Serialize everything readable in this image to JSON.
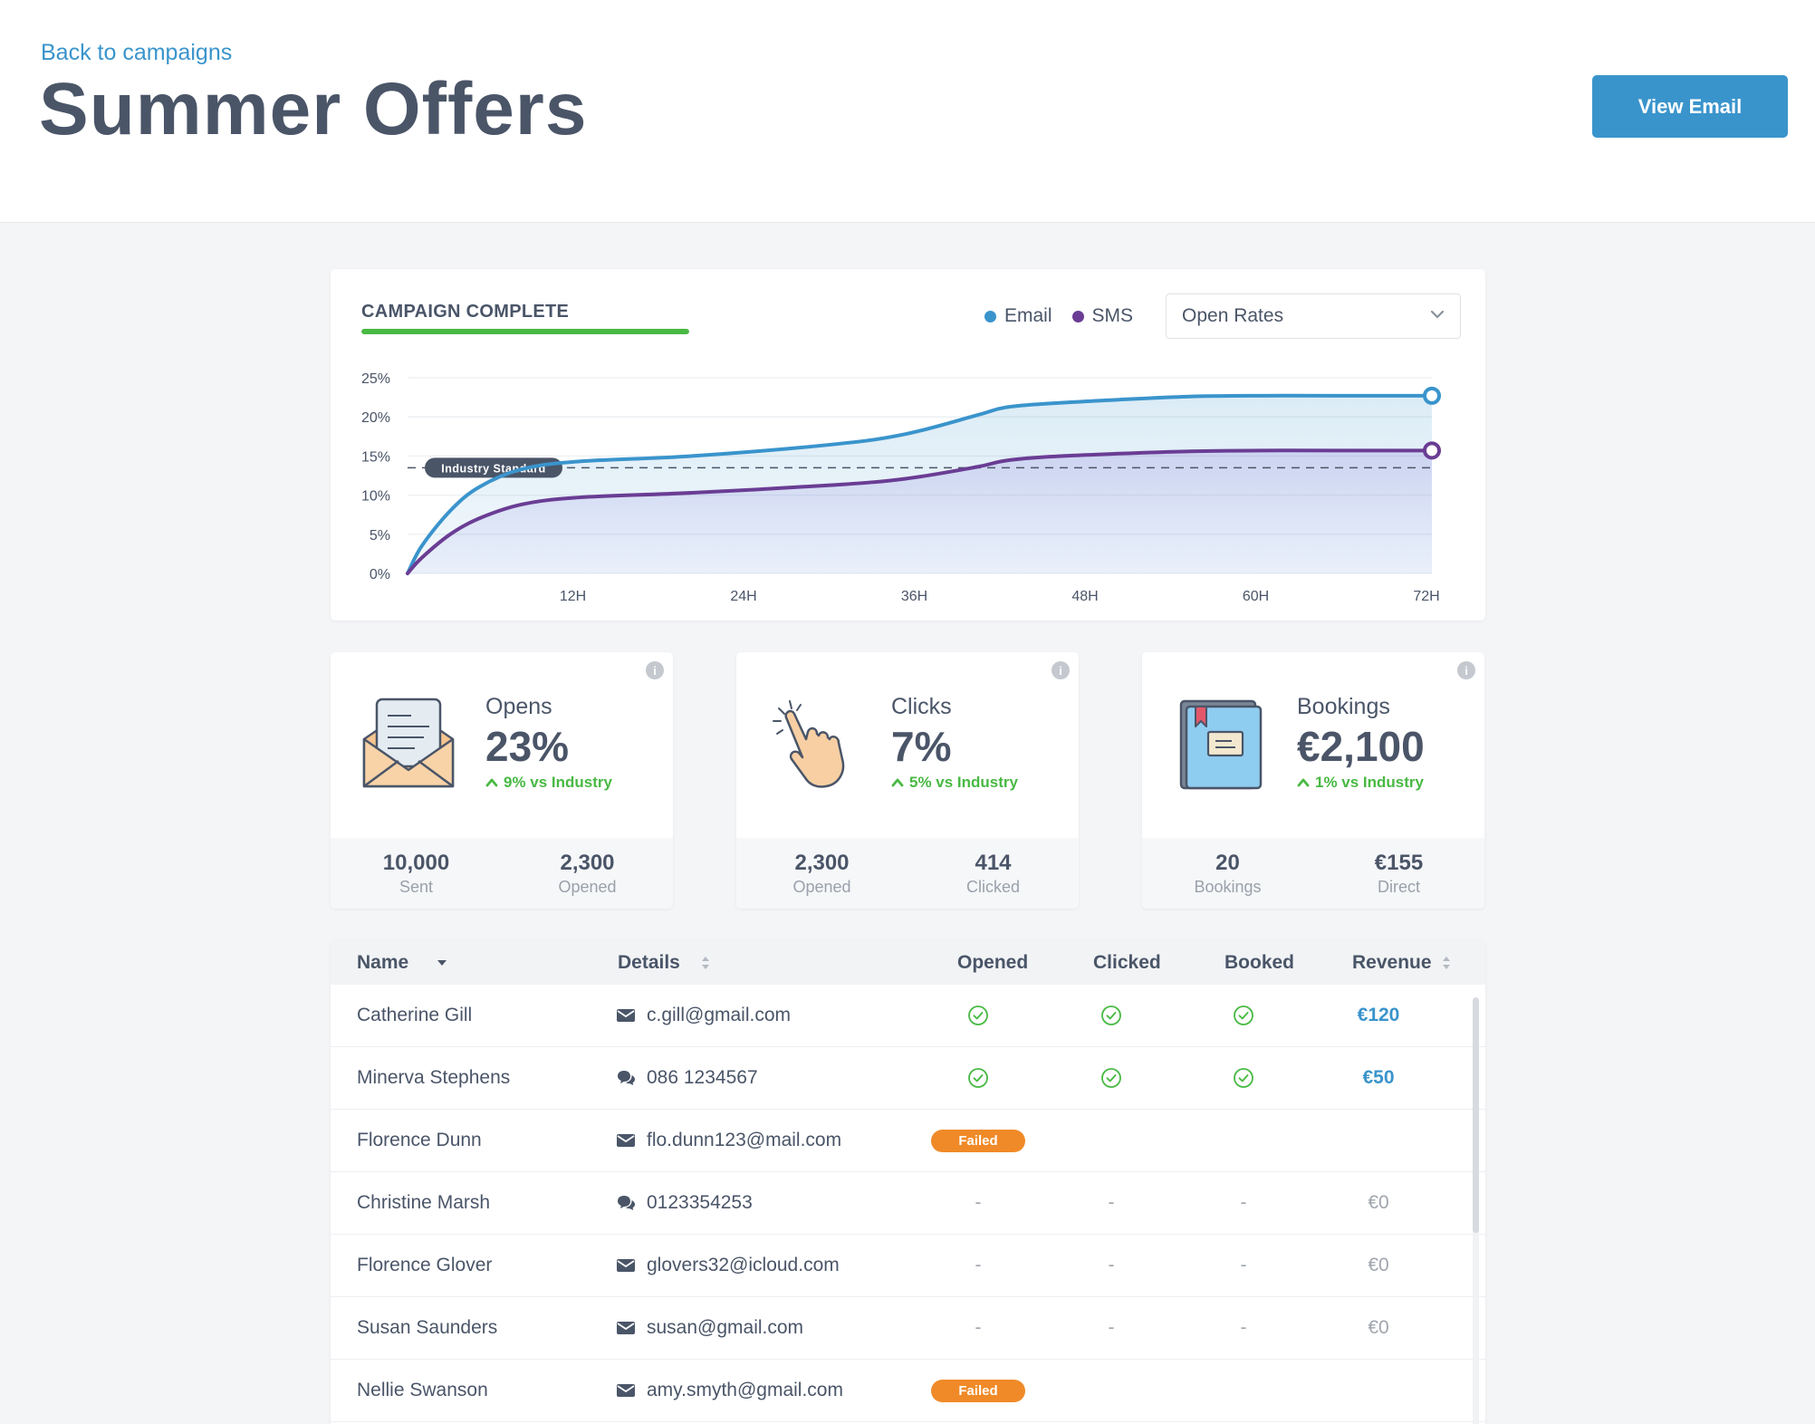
{
  "header": {
    "back_label": "Back to campaigns",
    "title": "Summer Offers",
    "view_email_label": "View Email"
  },
  "campaign": {
    "status_label": "CAMPAIGN COMPLETE",
    "progress": 1.0,
    "legend": [
      {
        "name": "Email",
        "color": "#3a94cc"
      },
      {
        "name": "SMS",
        "color": "#6a3d94"
      }
    ],
    "metric_select": "Open Rates"
  },
  "chart_data": {
    "type": "line",
    "x_ticks": [
      "12H",
      "24H",
      "36H",
      "48H",
      "60H",
      "72H"
    ],
    "y_ticks": [
      "0%",
      "5%",
      "10%",
      "15%",
      "20%",
      "25%"
    ],
    "ylim": [
      0,
      25
    ],
    "xlim": [
      0,
      72
    ],
    "series": [
      {
        "name": "Email",
        "color": "#3a94cc",
        "x": [
          0,
          1,
          3,
          5,
          8,
          12,
          20,
          30,
          35,
          40,
          42,
          45,
          50,
          55,
          60,
          65,
          72
        ],
        "y": [
          0,
          3.5,
          8,
          11,
          13.3,
          14.3,
          15,
          16.5,
          17.8,
          20.2,
          21.2,
          21.7,
          22.2,
          22.6,
          22.7,
          22.7,
          22.7
        ]
      },
      {
        "name": "SMS",
        "color": "#6a3d94",
        "x": [
          0,
          1,
          3,
          5,
          8,
          12,
          20,
          30,
          35,
          40,
          42,
          45,
          50,
          55,
          60,
          65,
          72
        ],
        "y": [
          0,
          2,
          5,
          7,
          8.8,
          9.7,
          10.3,
          11.3,
          12.1,
          13.6,
          14.4,
          14.9,
          15.3,
          15.6,
          15.7,
          15.7,
          15.7
        ]
      }
    ],
    "reference_line": {
      "label": "Industry Standard",
      "y": 13.5
    }
  },
  "stats": [
    {
      "label": "Opens",
      "value": "23%",
      "delta": "9% vs Industry",
      "icon": "envelope-open-icon",
      "foot": [
        {
          "num": "10,000",
          "lbl": "Sent"
        },
        {
          "num": "2,300",
          "lbl": "Opened"
        }
      ]
    },
    {
      "label": "Clicks",
      "value": "7%",
      "delta": "5% vs Industry",
      "icon": "pointer-hand-icon",
      "foot": [
        {
          "num": "2,300",
          "lbl": "Opened"
        },
        {
          "num": "414",
          "lbl": "Clicked"
        }
      ]
    },
    {
      "label": "Bookings",
      "value": "€2,100",
      "delta": "1% vs Industry",
      "icon": "booking-book-icon",
      "foot": [
        {
          "num": "20",
          "lbl": "Bookings"
        },
        {
          "num": "€155",
          "lbl": "Direct"
        }
      ]
    }
  ],
  "table": {
    "headers": {
      "name": "Name",
      "details": "Details",
      "opened": "Opened",
      "clicked": "Clicked",
      "booked": "Booked",
      "revenue": "Revenue"
    },
    "failed_label": "Failed",
    "dash": "-",
    "rows": [
      {
        "name": "Catherine Gill",
        "contact_type": "email",
        "contact": "c.gill@gmail.com",
        "opened": true,
        "clicked": true,
        "booked": true,
        "revenue": "€120",
        "failed": false
      },
      {
        "name": "Minerva Stephens",
        "contact_type": "sms",
        "contact": "086 1234567",
        "opened": true,
        "clicked": true,
        "booked": true,
        "revenue": "€50",
        "failed": false
      },
      {
        "name": "Florence Dunn",
        "contact_type": "email",
        "contact": "flo.dunn123@mail.com",
        "opened": null,
        "clicked": null,
        "booked": null,
        "revenue": "",
        "failed": true
      },
      {
        "name": "Christine Marsh",
        "contact_type": "sms",
        "contact": "0123354253",
        "opened": false,
        "clicked": false,
        "booked": false,
        "revenue": "€0",
        "failed": false
      },
      {
        "name": "Florence Glover",
        "contact_type": "email",
        "contact": "glovers32@icloud.com",
        "opened": false,
        "clicked": false,
        "booked": false,
        "revenue": "€0",
        "failed": false
      },
      {
        "name": "Susan Saunders",
        "contact_type": "email",
        "contact": "susan@gmail.com",
        "opened": false,
        "clicked": false,
        "booked": false,
        "revenue": "€0",
        "failed": false
      },
      {
        "name": "Nellie Swanson",
        "contact_type": "email",
        "contact": "amy.smyth@gmail.com",
        "opened": null,
        "clicked": null,
        "booked": null,
        "revenue": "",
        "failed": true
      }
    ]
  }
}
